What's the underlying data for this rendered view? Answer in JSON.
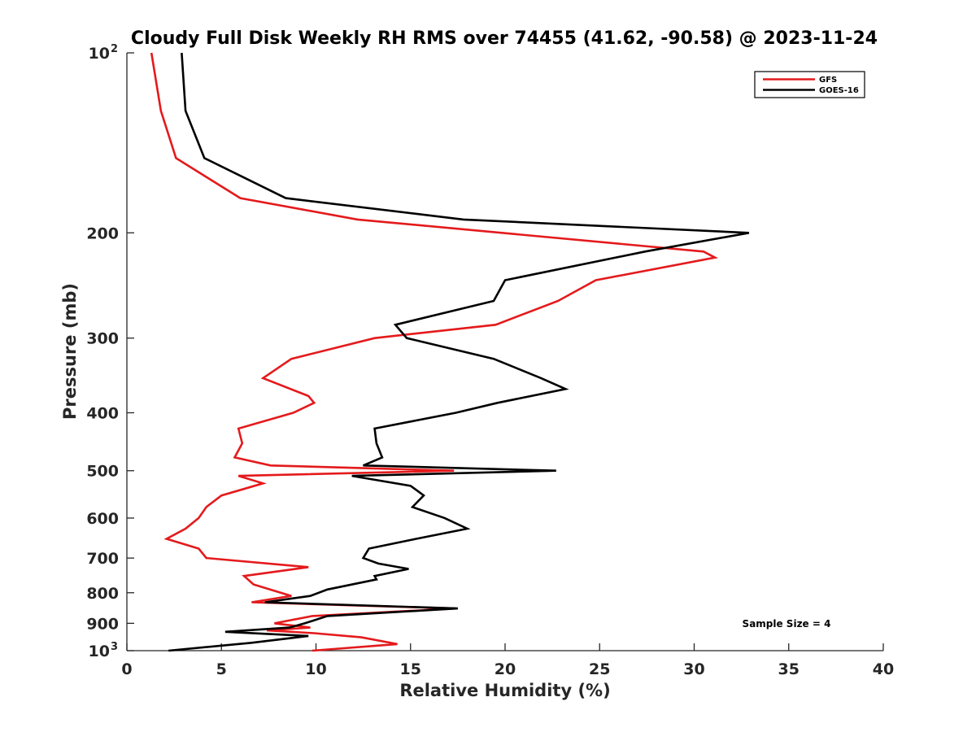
{
  "chart_data": {
    "type": "line",
    "title": "Cloudy Full Disk Weekly RH RMS over 74455 (41.62, -90.58) @ 2023-11-24",
    "xlabel": "Relative Humidity (%)",
    "ylabel": "Pressure (mb)",
    "xlim": [
      0,
      40
    ],
    "ylim": [
      100,
      1000
    ],
    "y_scale": "log",
    "y_reversed": true,
    "x_ticks": [
      0,
      5,
      10,
      15,
      20,
      25,
      30,
      35,
      40
    ],
    "y_ticks": [
      {
        "value": 100,
        "label": "10",
        "sup": "2"
      },
      {
        "value": 200,
        "label": "200"
      },
      {
        "value": 300,
        "label": "300"
      },
      {
        "value": 400,
        "label": "400"
      },
      {
        "value": 500,
        "label": "500"
      },
      {
        "value": 600,
        "label": "600"
      },
      {
        "value": 700,
        "label": "700"
      },
      {
        "value": 800,
        "label": "800"
      },
      {
        "value": 900,
        "label": "900"
      },
      {
        "value": 1000,
        "label": "10",
        "sup": "3"
      }
    ],
    "grid": false,
    "legend_position": "top-right",
    "annotation": "Sample Size = 4",
    "series": [
      {
        "name": "GFS",
        "color": "#e41a1c",
        "points": [
          [
            1.3,
            100
          ],
          [
            1.8,
            125
          ],
          [
            2.6,
            150
          ],
          [
            6.0,
            175
          ],
          [
            12.2,
            190
          ],
          [
            30.5,
            215
          ],
          [
            31.1,
            220
          ],
          [
            24.8,
            240
          ],
          [
            22.8,
            260
          ],
          [
            19.5,
            285
          ],
          [
            13.1,
            300
          ],
          [
            8.7,
            325
          ],
          [
            7.2,
            350
          ],
          [
            9.6,
            375
          ],
          [
            9.9,
            385
          ],
          [
            8.8,
            400
          ],
          [
            5.9,
            425
          ],
          [
            6.1,
            450
          ],
          [
            5.7,
            475
          ],
          [
            7.6,
            490
          ],
          [
            17.3,
            500
          ],
          [
            5.9,
            510
          ],
          [
            7.2,
            525
          ],
          [
            5.0,
            550
          ],
          [
            4.2,
            575
          ],
          [
            3.8,
            600
          ],
          [
            3.1,
            625
          ],
          [
            2.1,
            650
          ],
          [
            3.8,
            675
          ],
          [
            4.2,
            700
          ],
          [
            9.6,
            725
          ],
          [
            6.2,
            750
          ],
          [
            6.7,
            775
          ],
          [
            8.7,
            810
          ],
          [
            6.6,
            830
          ],
          [
            17.4,
            850
          ],
          [
            9.8,
            875
          ],
          [
            7.8,
            900
          ],
          [
            9.7,
            915
          ],
          [
            7.4,
            925
          ],
          [
            9.9,
            935
          ],
          [
            12.4,
            950
          ],
          [
            14.3,
            975
          ],
          [
            9.8,
            1000
          ]
        ]
      },
      {
        "name": "GOES-16",
        "color": "#000000",
        "points": [
          [
            2.9,
            100
          ],
          [
            3.1,
            125
          ],
          [
            4.1,
            150
          ],
          [
            8.4,
            175
          ],
          [
            17.8,
            190
          ],
          [
            32.9,
            200
          ],
          [
            27.4,
            215
          ],
          [
            20.0,
            240
          ],
          [
            19.4,
            260
          ],
          [
            14.2,
            285
          ],
          [
            14.8,
            300
          ],
          [
            19.4,
            325
          ],
          [
            21.9,
            350
          ],
          [
            23.2,
            365
          ],
          [
            19.6,
            385
          ],
          [
            17.4,
            400
          ],
          [
            13.1,
            425
          ],
          [
            13.2,
            450
          ],
          [
            13.5,
            475
          ],
          [
            12.5,
            490
          ],
          [
            22.7,
            500
          ],
          [
            11.9,
            510
          ],
          [
            15.0,
            530
          ],
          [
            15.7,
            550
          ],
          [
            15.1,
            575
          ],
          [
            16.8,
            600
          ],
          [
            18.0,
            625
          ],
          [
            15.3,
            650
          ],
          [
            12.8,
            675
          ],
          [
            12.5,
            700
          ],
          [
            13.3,
            715
          ],
          [
            14.9,
            730
          ],
          [
            13.1,
            750
          ],
          [
            13.2,
            760
          ],
          [
            10.6,
            790
          ],
          [
            9.7,
            810
          ],
          [
            7.3,
            830
          ],
          [
            17.5,
            850
          ],
          [
            10.6,
            875
          ],
          [
            9.4,
            900
          ],
          [
            8.6,
            915
          ],
          [
            5.2,
            930
          ],
          [
            9.6,
            945
          ],
          [
            6.6,
            970
          ],
          [
            2.2,
            1000
          ]
        ]
      }
    ]
  }
}
